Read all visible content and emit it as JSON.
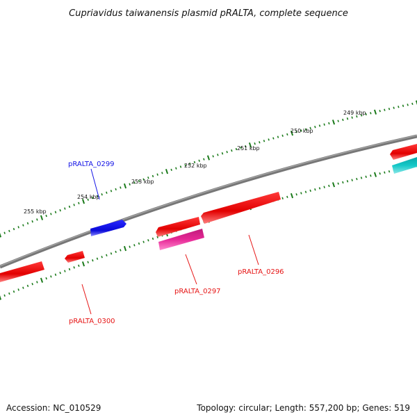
{
  "title": "Cupriavidus taiwanensis plasmid pRALTA, complete sequence",
  "footer": {
    "accession": "Accession: NC_010529",
    "summary": "Topology: circular; Length: 557,200 bp; Genes: 519"
  },
  "ticks": [
    "249 kbp",
    "250 kbp",
    "251 kbp",
    "252 kbp",
    "253 kbp",
    "254 kbp",
    "255 kbp"
  ],
  "genes": [
    {
      "id": "pRALTA_0299",
      "label": "pRALTA_0299",
      "strand": "+",
      "color": "#1414e6",
      "labeled": true
    },
    {
      "id": "pRALTA_0296",
      "label": "pRALTA_0296",
      "strand": "-",
      "color": "#e61414",
      "labeled": true
    },
    {
      "id": "pRALTA_0297",
      "label": "pRALTA_0297",
      "strand": "-",
      "color": "#e61414",
      "labeled": true
    },
    {
      "id": "pRALTA_0300",
      "label": "pRALTA_0300",
      "strand": "-",
      "color": "#e61414",
      "labeled": true
    },
    {
      "id": "pink-gene",
      "label": "",
      "strand": "-",
      "color": "#e62896",
      "labeled": false
    },
    {
      "id": "cyan-gene",
      "label": "",
      "strand": "-",
      "color": "#14c8c8",
      "labeled": false
    }
  ],
  "colors": {
    "backbone": "#808080",
    "ticks": "#1a7a1a",
    "forward_gene": "#1414e6",
    "reverse_gene": "#e61414",
    "pink_gene": "#e62896",
    "cyan_gene": "#14c8c8"
  }
}
